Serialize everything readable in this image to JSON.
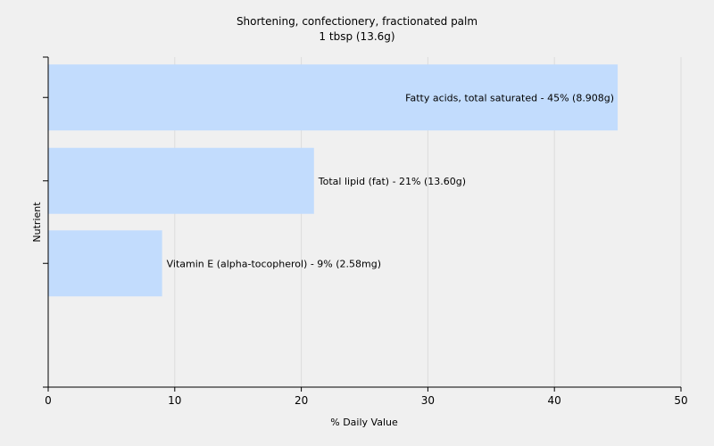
{
  "chart_data": {
    "type": "bar",
    "orientation": "horizontal",
    "title": "Shortening, confectionery, fractionated palm",
    "subtitle": "1 tbsp (13.6g)",
    "xlabel": "% Daily Value",
    "ylabel": "Nutrient",
    "xlim": [
      0,
      50
    ],
    "xticks": [
      0,
      10,
      20,
      30,
      40,
      50
    ],
    "grid": true,
    "bar_color": "#c2dcfd",
    "categories": [
      "Fatty acids, total saturated",
      "Total lipid (fat)",
      "Vitamin E (alpha-tocopherol)"
    ],
    "values": [
      45,
      21,
      9
    ],
    "data_labels": [
      "Fatty acids, total saturated - 45% (8.908g)",
      "Total lipid (fat) - 21% (13.60g)",
      "Vitamin E (alpha-tocopherol) - 9% (2.58mg)"
    ]
  }
}
